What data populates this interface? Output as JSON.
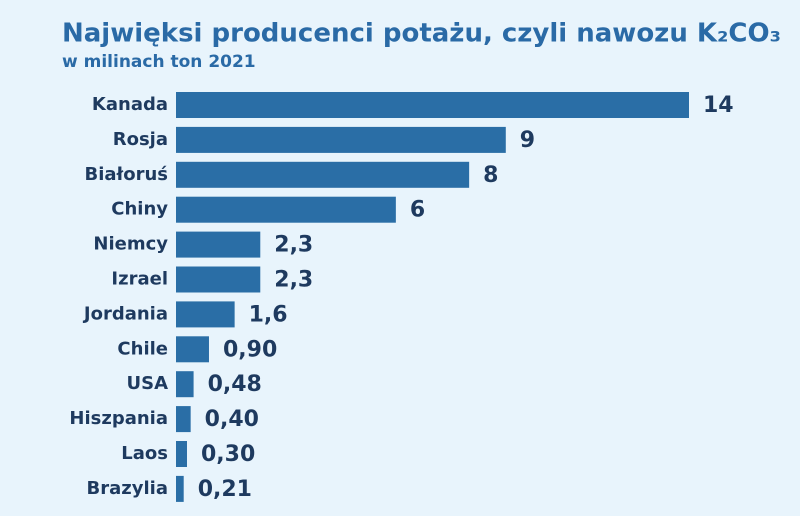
{
  "chart_data": {
    "type": "bar",
    "orientation": "horizontal",
    "title": "Najwięksi producenci potażu, czyli nawozu K₂CO₃",
    "subtitle": "w milinach ton 2021",
    "categories": [
      "Kanada",
      "Rosja",
      "Białoruś",
      "Chiny",
      "Niemcy",
      "Izrael",
      "Jordania",
      "Chile",
      "USA",
      "Hiszpania",
      "Laos",
      "Brazylia"
    ],
    "values": [
      14,
      9,
      8,
      6,
      2.3,
      2.3,
      1.6,
      0.9,
      0.48,
      0.4,
      0.3,
      0.21
    ],
    "value_labels": [
      "14",
      "9",
      "8",
      "6",
      "2,3",
      "2,3",
      "1,6",
      "0,90",
      "0,48",
      "0,40",
      "0,30",
      "0,21"
    ],
    "color": "#2a6ea6"
  }
}
